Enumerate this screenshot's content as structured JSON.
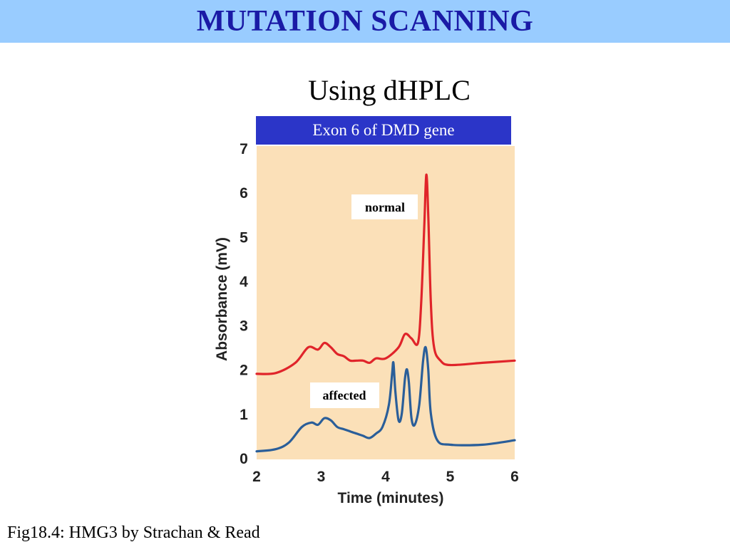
{
  "header": {
    "title": "MUTATION SCANNING"
  },
  "subtitle": "Using dHPLC",
  "caption": "Fig18.4: HMG3 by Strachan & Read",
  "colors": {
    "header_bg": "#99ccff",
    "title": "#1a1aa6",
    "banner": "#2b35c8",
    "plot_bg": "#fbe0b8",
    "normal": "#e0242a",
    "affected": "#2a5e99"
  },
  "chart_data": {
    "type": "line",
    "title": "Exon 6 of DMD gene",
    "xlabel": "Time (minutes)",
    "ylabel": "Absorbance (mV)",
    "xlim": [
      2,
      6
    ],
    "ylim": [
      0,
      7
    ],
    "xticks": [
      2,
      3,
      4,
      5,
      6
    ],
    "yticks": [
      0,
      1,
      2,
      3,
      4,
      5,
      6,
      7
    ],
    "grid": false,
    "annotations": [
      "normal",
      "affected"
    ],
    "series": [
      {
        "name": "normal",
        "x": [
          2.0,
          2.3,
          2.6,
          2.8,
          2.95,
          3.05,
          3.15,
          3.25,
          3.35,
          3.45,
          3.55,
          3.65,
          3.75,
          3.85,
          4.0,
          4.2,
          4.3,
          4.4,
          4.5,
          4.55,
          4.6,
          4.63,
          4.66,
          4.7,
          4.75,
          4.85,
          5.0,
          5.5,
          6.0
        ],
        "y": [
          1.9,
          1.92,
          2.15,
          2.5,
          2.45,
          2.6,
          2.5,
          2.35,
          2.3,
          2.2,
          2.2,
          2.2,
          2.15,
          2.25,
          2.25,
          2.5,
          2.8,
          2.7,
          2.6,
          3.5,
          5.3,
          6.4,
          5.5,
          3.5,
          2.5,
          2.2,
          2.1,
          2.15,
          2.2
        ]
      },
      {
        "name": "affected",
        "x": [
          2.0,
          2.3,
          2.5,
          2.7,
          2.85,
          2.95,
          3.05,
          3.15,
          3.25,
          3.35,
          3.45,
          3.55,
          3.65,
          3.75,
          3.85,
          3.95,
          4.05,
          4.1,
          4.12,
          4.15,
          4.2,
          4.25,
          4.3,
          4.33,
          4.36,
          4.4,
          4.45,
          4.52,
          4.58,
          4.62,
          4.66,
          4.7,
          4.8,
          5.0,
          5.5,
          6.0
        ],
        "y": [
          0.15,
          0.2,
          0.35,
          0.7,
          0.8,
          0.75,
          0.9,
          0.85,
          0.7,
          0.65,
          0.6,
          0.55,
          0.5,
          0.45,
          0.55,
          0.7,
          1.2,
          1.9,
          2.15,
          1.5,
          0.85,
          1.0,
          1.8,
          2.0,
          1.7,
          0.9,
          0.75,
          1.2,
          2.2,
          2.5,
          2.0,
          1.0,
          0.4,
          0.3,
          0.3,
          0.4
        ]
      }
    ]
  }
}
